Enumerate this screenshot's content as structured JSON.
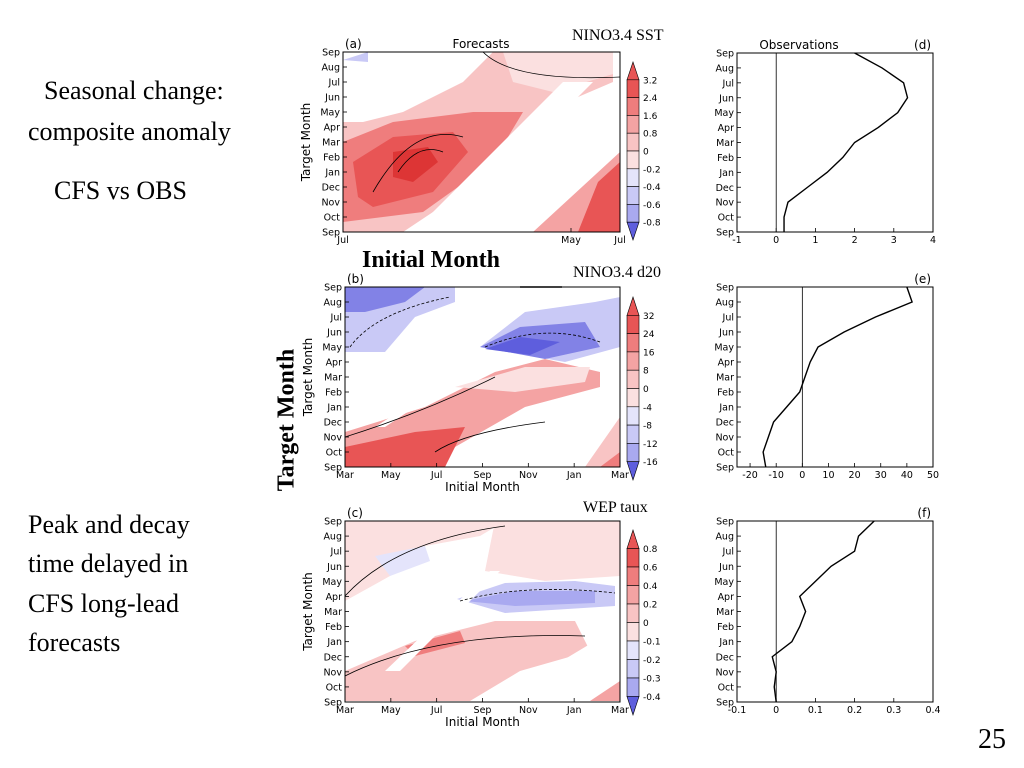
{
  "slide": {
    "text_seasonal": "Seasonal change:",
    "text_composite": "composite anomaly",
    "text_cfs_obs": "CFS vs OBS",
    "peak_lines": [
      "Peak and decay",
      "time delayed in",
      "CFS long-lead",
      "forecasts"
    ],
    "overlay_initial_month": "Initial Month",
    "overlay_target_month": "Target Month",
    "page_number": "25"
  },
  "colors": {
    "red_scale": [
      "#fbe0e0",
      "#f8c4c4",
      "#f4a3a3",
      "#ef7d7d",
      "#e85555",
      "#dd3535"
    ],
    "blue_scale": [
      "#e4e4fb",
      "#c9c9f6",
      "#a9a9f0",
      "#8282e6",
      "#5e5edd"
    ]
  },
  "chart_data": [
    {
      "id": "a",
      "type": "heatmap",
      "panel_label": "(a)",
      "panel_title": "Forecasts",
      "title": "NINO3.4 SST",
      "xlabel": "",
      "ylabel": "Target Month",
      "x_ticks": [
        "Jul",
        "May",
        "Jul"
      ],
      "y_ticks": [
        "Sep",
        "Aug",
        "Jul",
        "Jun",
        "May",
        "Apr",
        "Mar",
        "Feb",
        "Jan",
        "Dec",
        "Nov",
        "Oct",
        "Sep"
      ],
      "colorbar_ticks": [
        "3.2",
        "2.4",
        "1.6",
        "0.8",
        "0",
        "-0.2",
        "-0.4",
        "-0.6",
        "-0.8"
      ]
    },
    {
      "id": "b",
      "type": "heatmap",
      "panel_label": "(b)",
      "title": "NINO3.4 d20",
      "xlabel": "Initial Month",
      "ylabel": "Target Month",
      "x_ticks": [
        "Mar",
        "May",
        "Jul",
        "Sep",
        "Nov",
        "Jan",
        "Mar"
      ],
      "y_ticks": [
        "Sep",
        "Aug",
        "Jul",
        "Jun",
        "May",
        "Apr",
        "Mar",
        "Feb",
        "Jan",
        "Dec",
        "Nov",
        "Oct",
        "Sep"
      ],
      "colorbar_ticks": [
        "32",
        "24",
        "16",
        "8",
        "0",
        "-4",
        "-8",
        "-12",
        "-16"
      ]
    },
    {
      "id": "c",
      "type": "heatmap",
      "panel_label": "(c)",
      "title": "WEP taux",
      "xlabel": "Initial Month",
      "ylabel": "Target Month",
      "x_ticks": [
        "Mar",
        "May",
        "Jul",
        "Sep",
        "Nov",
        "Jan",
        "Mar"
      ],
      "y_ticks": [
        "Sep",
        "Aug",
        "Jul",
        "Jun",
        "May",
        "Apr",
        "Mar",
        "Feb",
        "Jan",
        "Dec",
        "Nov",
        "Oct",
        "Sep"
      ],
      "colorbar_ticks": [
        "0.8",
        "0.6",
        "0.4",
        "0.2",
        "0",
        "-0.1",
        "-0.2",
        "-0.3",
        "-0.4"
      ]
    },
    {
      "id": "d",
      "type": "line",
      "panel_label": "(d)",
      "panel_title": "Observations",
      "y_ticks": [
        "Sep",
        "Aug",
        "Jul",
        "Jun",
        "May",
        "Apr",
        "Mar",
        "Feb",
        "Jan",
        "Dec",
        "Nov",
        "Oct",
        "Sep"
      ],
      "x_ticks": [
        "-1",
        "0",
        "1",
        "2",
        "3",
        "4"
      ],
      "xlim": [
        -1,
        4
      ],
      "x": [
        0.2,
        0.2,
        0.3,
        0.8,
        1.3,
        1.7,
        2.0,
        2.6,
        3.1,
        3.35,
        3.25,
        2.7,
        2.0
      ]
    },
    {
      "id": "e",
      "type": "line",
      "panel_label": "(e)",
      "y_ticks": [
        "Sep",
        "Aug",
        "Jul",
        "Jun",
        "May",
        "Apr",
        "Mar",
        "Feb",
        "Jan",
        "Dec",
        "Nov",
        "Oct",
        "Sep"
      ],
      "x_ticks": [
        "-20",
        "-10",
        "0",
        "10",
        "20",
        "30",
        "40",
        "50"
      ],
      "xlim": [
        -25,
        50
      ],
      "x": [
        -14,
        -15,
        -13,
        -11,
        -6,
        -1,
        1,
        3,
        6,
        16,
        28,
        42,
        40
      ]
    },
    {
      "id": "f",
      "type": "line",
      "panel_label": "(f)",
      "y_ticks": [
        "Sep",
        "Aug",
        "Jul",
        "Jun",
        "May",
        "Apr",
        "Mar",
        "Feb",
        "Jan",
        "Dec",
        "Nov",
        "Oct",
        "Sep"
      ],
      "x_ticks": [
        "-0.1",
        "0",
        "0.1",
        "0.2",
        "0.3",
        "0.4"
      ],
      "xlim": [
        -0.1,
        0.4
      ],
      "x": [
        0.0,
        -0.005,
        0.0,
        -0.01,
        0.04,
        0.06,
        0.075,
        0.06,
        0.1,
        0.14,
        0.2,
        0.21,
        0.25
      ]
    }
  ]
}
